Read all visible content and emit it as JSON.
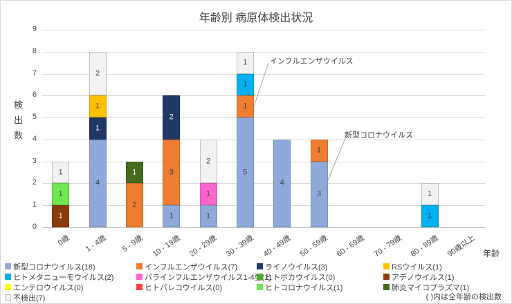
{
  "chart_data": {
    "type": "bar",
    "stacked": true,
    "title": "年齢別 病原体検出状況",
    "xlabel": "年齢",
    "ylabel": "検出数",
    "ylim": [
      0,
      9
    ],
    "grid": true,
    "legend_position": "bottom",
    "categories": [
      "0歳",
      "1 - 4歳",
      "5 - 9歳",
      "10 - 19歳",
      "20 - 29歳",
      "30 - 39歳",
      "40 - 49歳",
      "50 - 59歳",
      "60 - 69歳",
      "70 - 79歳",
      "80 - 89歳",
      "90歳以上"
    ],
    "series": [
      {
        "key": "covid19",
        "name": "新型コロナウイルス",
        "total": 18,
        "color": "#8EAADB",
        "label_color": "dark",
        "values": [
          0,
          4,
          0,
          1,
          1,
          5,
          4,
          3,
          0,
          0,
          0,
          0
        ]
      },
      {
        "key": "influenza",
        "name": "インフルエンザウイルス",
        "total": 7,
        "color": "#ED7D31",
        "label_color": "dark",
        "values": [
          0,
          0,
          2,
          3,
          0,
          1,
          0,
          1,
          0,
          0,
          0,
          0
        ]
      },
      {
        "key": "rhinovirus",
        "name": "ライノウイルス",
        "total": 3,
        "color": "#1F3864",
        "label_color": "light",
        "values": [
          0,
          1,
          0,
          2,
          0,
          0,
          0,
          0,
          0,
          0,
          0,
          0
        ]
      },
      {
        "key": "rsv",
        "name": "RSウイルス",
        "total": 1,
        "color": "#FFC000",
        "label_color": "dark",
        "values": [
          0,
          1,
          0,
          0,
          0,
          0,
          0,
          0,
          0,
          0,
          0,
          0
        ]
      },
      {
        "key": "hmpv",
        "name": "ヒトメタニューモウイルス",
        "total": 2,
        "color": "#00B0F0",
        "label_color": "dark",
        "values": [
          0,
          0,
          0,
          0,
          0,
          1,
          0,
          0,
          0,
          0,
          1,
          0
        ]
      },
      {
        "key": "parainfluenza",
        "name": "パラインフルエンザウイルス1-4型",
        "total": 1,
        "color": "#FF66CC",
        "label_color": "dark",
        "values": [
          0,
          0,
          0,
          0,
          1,
          0,
          0,
          0,
          0,
          0,
          0,
          0
        ]
      },
      {
        "key": "bocavirus",
        "name": "ヒトボカウイルス",
        "total": 0,
        "color": "#4EA72E",
        "label_color": "dark",
        "values": [
          0,
          0,
          0,
          0,
          0,
          0,
          0,
          0,
          0,
          0,
          0,
          0
        ]
      },
      {
        "key": "adenovirus",
        "name": "アデノウイルス",
        "total": 1,
        "color": "#8A3B0E",
        "label_color": "light",
        "values": [
          1,
          0,
          0,
          0,
          0,
          0,
          0,
          0,
          0,
          0,
          0,
          0
        ]
      },
      {
        "key": "enterovirus",
        "name": "エンテロウイルス",
        "total": 0,
        "color": "#FFFF00",
        "label_color": "dark",
        "values": [
          0,
          0,
          0,
          0,
          0,
          0,
          0,
          0,
          0,
          0,
          0,
          0
        ]
      },
      {
        "key": "parechovirus",
        "name": "ヒトパレコウイルス",
        "total": 0,
        "color": "#FF4040",
        "label_color": "dark",
        "values": [
          0,
          0,
          0,
          0,
          0,
          0,
          0,
          0,
          0,
          0,
          0,
          0
        ]
      },
      {
        "key": "hcov",
        "name": "ヒトコロナウイルス",
        "total": 1,
        "color": "#70E850",
        "label_color": "dark",
        "values": [
          1,
          0,
          0,
          0,
          0,
          0,
          0,
          0,
          0,
          0,
          0,
          0
        ]
      },
      {
        "key": "mycoplasma",
        "name": "肺炎マイコプラズマ",
        "total": 1,
        "color": "#446B20",
        "label_color": "light",
        "values": [
          0,
          0,
          1,
          0,
          0,
          0,
          0,
          0,
          0,
          0,
          0,
          0
        ]
      },
      {
        "key": "not-detected",
        "name": "不検出",
        "total": 7,
        "color": "#F2F2F2",
        "border": "#BFBFBF",
        "label_color": "dark",
        "values": [
          1,
          2,
          0,
          0,
          2,
          1,
          0,
          0,
          0,
          0,
          1,
          0
        ]
      }
    ],
    "annotations": [
      {
        "text": "インフルエンザウイルス",
        "target": "30 - 39歳 インフルエンザ segment"
      },
      {
        "text": "新型コロナウイルス",
        "target": "50 - 59歳 新型コロナ segment"
      }
    ],
    "footnote": "( )内は全年齢の検出数",
    "colors": {
      "gridline": "#D9D9D9",
      "axis_line": "#BFBFBF",
      "text": "#404040",
      "leader_line": "#A6A6A6"
    }
  }
}
